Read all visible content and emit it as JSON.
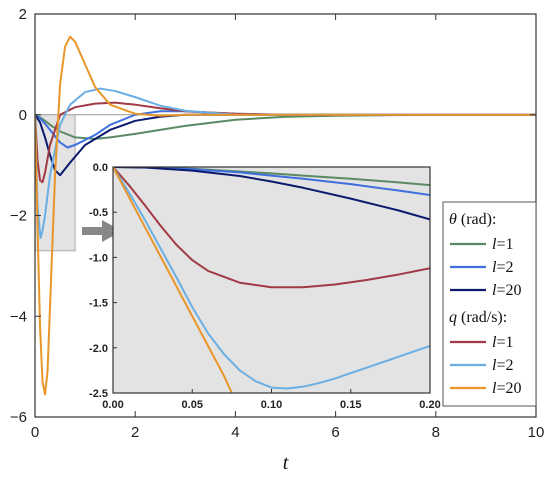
{
  "chart_data": [
    {
      "type": "line",
      "role": "main",
      "xlabel": "t",
      "ylabel": "",
      "xlim": [
        0,
        10
      ],
      "ylim": [
        -6,
        2
      ],
      "xticks": [
        0,
        2,
        4,
        6,
        8,
        10
      ],
      "yticks": [
        2,
        0,
        -2,
        -4,
        -6
      ],
      "xtick_labels": [
        "0",
        "2",
        "4",
        "6",
        "8",
        "10"
      ],
      "ytick_labels": [
        "2",
        "0",
        "−2",
        "−4",
        "−6"
      ],
      "zero_line": true,
      "zoom_box": {
        "x": [
          0.0,
          0.8
        ],
        "y": [
          -2.7,
          0.0
        ]
      },
      "series": [
        {
          "name": "l=1",
          "group": "θ (rad)",
          "color": "#5a8a63",
          "x": [
            0,
            0.1,
            0.2,
            0.3,
            0.5,
            0.8,
            1.2,
            1.5,
            2,
            2.5,
            3,
            4,
            5,
            6,
            8,
            10
          ],
          "y": [
            0,
            -0.05,
            -0.12,
            -0.2,
            -0.33,
            -0.45,
            -0.48,
            -0.45,
            -0.38,
            -0.3,
            -0.22,
            -0.1,
            -0.04,
            -0.02,
            0,
            0
          ]
        },
        {
          "name": "l=2",
          "group": "θ (rad)",
          "color": "#3f6fdc",
          "x": [
            0,
            0.1,
            0.2,
            0.3,
            0.5,
            0.65,
            0.8,
            1.2,
            1.5,
            2,
            2.5,
            3,
            3.5,
            4,
            5,
            10
          ],
          "y": [
            0,
            -0.07,
            -0.18,
            -0.3,
            -0.55,
            -0.65,
            -0.6,
            -0.4,
            -0.2,
            0.0,
            0.07,
            0.07,
            0.04,
            0.02,
            0.0,
            0
          ]
        },
        {
          "name": "l=20",
          "group": "θ (rad)",
          "color": "#0b1a6e",
          "x": [
            0,
            0.1,
            0.2,
            0.3,
            0.4,
            0.5,
            0.7,
            1.0,
            1.5,
            2.0,
            2.5,
            3,
            3.5,
            4,
            5,
            10
          ],
          "y": [
            0,
            -0.15,
            -0.45,
            -0.8,
            -1.1,
            -1.2,
            -0.95,
            -0.6,
            -0.3,
            -0.12,
            -0.04,
            0.0,
            0.0,
            0.0,
            0.0,
            0
          ]
        },
        {
          "name": "l=1",
          "group": "q (rad/s)",
          "color": "#a13a45",
          "x": [
            0,
            0.05,
            0.1,
            0.15,
            0.2,
            0.3,
            0.5,
            0.8,
            1.2,
            1.6,
            2,
            2.5,
            3,
            4,
            5,
            10
          ],
          "y": [
            0,
            -0.9,
            -1.3,
            -1.34,
            -1.15,
            -0.6,
            0.0,
            0.15,
            0.22,
            0.24,
            0.2,
            0.13,
            0.07,
            0.02,
            0.0,
            0
          ]
        },
        {
          "name": "l=2",
          "group": "q (rad/s)",
          "color": "#6aaee3",
          "x": [
            0,
            0.05,
            0.11,
            0.15,
            0.2,
            0.3,
            0.5,
            0.7,
            1.0,
            1.3,
            1.6,
            2,
            2.5,
            3,
            4,
            10
          ],
          "y": [
            0,
            -1.8,
            -2.45,
            -2.3,
            -2.0,
            -1.2,
            -0.2,
            0.2,
            0.45,
            0.52,
            0.47,
            0.35,
            0.18,
            0.08,
            0.0,
            0
          ]
        },
        {
          "name": "l=20",
          "group": "q (rad/s)",
          "color": "#e8962a",
          "x": [
            0,
            0.05,
            0.1,
            0.15,
            0.2,
            0.25,
            0.3,
            0.4,
            0.5,
            0.6,
            0.7,
            0.8,
            1.0,
            1.2,
            1.5,
            2,
            2.5,
            3,
            4,
            10
          ],
          "y": [
            0,
            -2.2,
            -4.2,
            -5.3,
            -5.55,
            -5.1,
            -3.8,
            -1.2,
            0.6,
            1.35,
            1.55,
            1.45,
            1.0,
            0.55,
            0.2,
            0.02,
            -0.02,
            0.0,
            0.0,
            0
          ]
        }
      ]
    },
    {
      "type": "line",
      "role": "inset",
      "xlabel": "",
      "ylabel": "",
      "xlim": [
        0,
        0.2
      ],
      "ylim": [
        -2.5,
        0
      ],
      "xticks": [
        0,
        0.05,
        0.1,
        0.15,
        0.2
      ],
      "yticks": [
        0,
        -0.5,
        -1.0,
        -1.5,
        -2.0,
        -2.5
      ],
      "xtick_labels": [
        "0.00",
        "0.05",
        "0.10",
        "0.15",
        "0.20"
      ],
      "ytick_labels": [
        "0.0",
        "-0.5",
        "-1.0",
        "-1.5",
        "-2.0",
        "-2.5"
      ],
      "background": "#e3e3e3",
      "series": [
        {
          "name": "l=1",
          "group": "θ (rad)",
          "color": "#5a8a63",
          "x": [
            0,
            0.02,
            0.05,
            0.08,
            0.1,
            0.12,
            0.15,
            0.18,
            0.2
          ],
          "y": [
            0,
            -0.003,
            -0.02,
            -0.05,
            -0.07,
            -0.095,
            -0.13,
            -0.17,
            -0.2
          ]
        },
        {
          "name": "l=2",
          "group": "θ (rad)",
          "color": "#3f6fdc",
          "x": [
            0,
            0.02,
            0.05,
            0.08,
            0.1,
            0.12,
            0.15,
            0.18,
            0.2
          ],
          "y": [
            0,
            -0.004,
            -0.025,
            -0.06,
            -0.095,
            -0.13,
            -0.19,
            -0.26,
            -0.31
          ]
        },
        {
          "name": "l=20",
          "group": "θ (rad)",
          "color": "#0b1a6e",
          "x": [
            0,
            0.02,
            0.05,
            0.08,
            0.1,
            0.12,
            0.15,
            0.18,
            0.2
          ],
          "y": [
            0,
            -0.006,
            -0.04,
            -0.1,
            -0.16,
            -0.23,
            -0.35,
            -0.48,
            -0.58
          ]
        },
        {
          "name": "l=1",
          "group": "q (rad/s)",
          "color": "#a13a45",
          "x": [
            0,
            0.005,
            0.01,
            0.02,
            0.03,
            0.04,
            0.05,
            0.06,
            0.08,
            0.1,
            0.12,
            0.14,
            0.16,
            0.18,
            0.2
          ],
          "y": [
            0,
            -0.1,
            -0.2,
            -0.42,
            -0.65,
            -0.86,
            -1.03,
            -1.15,
            -1.28,
            -1.33,
            -1.33,
            -1.3,
            -1.25,
            -1.19,
            -1.12
          ]
        },
        {
          "name": "l=2",
          "group": "q (rad/s)",
          "color": "#6aaee3",
          "x": [
            0,
            0.01,
            0.02,
            0.03,
            0.04,
            0.05,
            0.06,
            0.07,
            0.08,
            0.09,
            0.1,
            0.11,
            0.12,
            0.13,
            0.14,
            0.15,
            0.16,
            0.18,
            0.2
          ],
          "y": [
            0,
            -0.28,
            -0.58,
            -0.9,
            -1.22,
            -1.55,
            -1.84,
            -2.07,
            -2.25,
            -2.37,
            -2.44,
            -2.45,
            -2.43,
            -2.39,
            -2.34,
            -2.28,
            -2.22,
            -2.1,
            -1.98
          ]
        },
        {
          "name": "l=20",
          "group": "q (rad/s)",
          "color": "#e8962a",
          "x": [
            0,
            0.01,
            0.02,
            0.03,
            0.04,
            0.05,
            0.06,
            0.07,
            0.075
          ],
          "y": [
            0,
            -0.33,
            -0.66,
            -0.99,
            -1.32,
            -1.65,
            -1.98,
            -2.31,
            -2.5
          ]
        }
      ]
    }
  ],
  "legend": {
    "groups": [
      {
        "symbol": "θ",
        "unit": " (rad):",
        "items": [
          {
            "label": "l",
            "suffix": "=1",
            "color": "#5a8a63"
          },
          {
            "label": "l",
            "suffix": "=2",
            "color": "#3f6fdc"
          },
          {
            "label": "l",
            "suffix": "=20",
            "color": "#0b1a6e"
          }
        ]
      },
      {
        "symbol": "q",
        "unit": " (rad/s):",
        "items": [
          {
            "label": "l",
            "suffix": "=1",
            "color": "#a13a45"
          },
          {
            "label": "l",
            "suffix": "=2",
            "color": "#6aaee3"
          },
          {
            "label": "l",
            "suffix": "=20",
            "color": "#e8962a"
          }
        ]
      }
    ]
  }
}
